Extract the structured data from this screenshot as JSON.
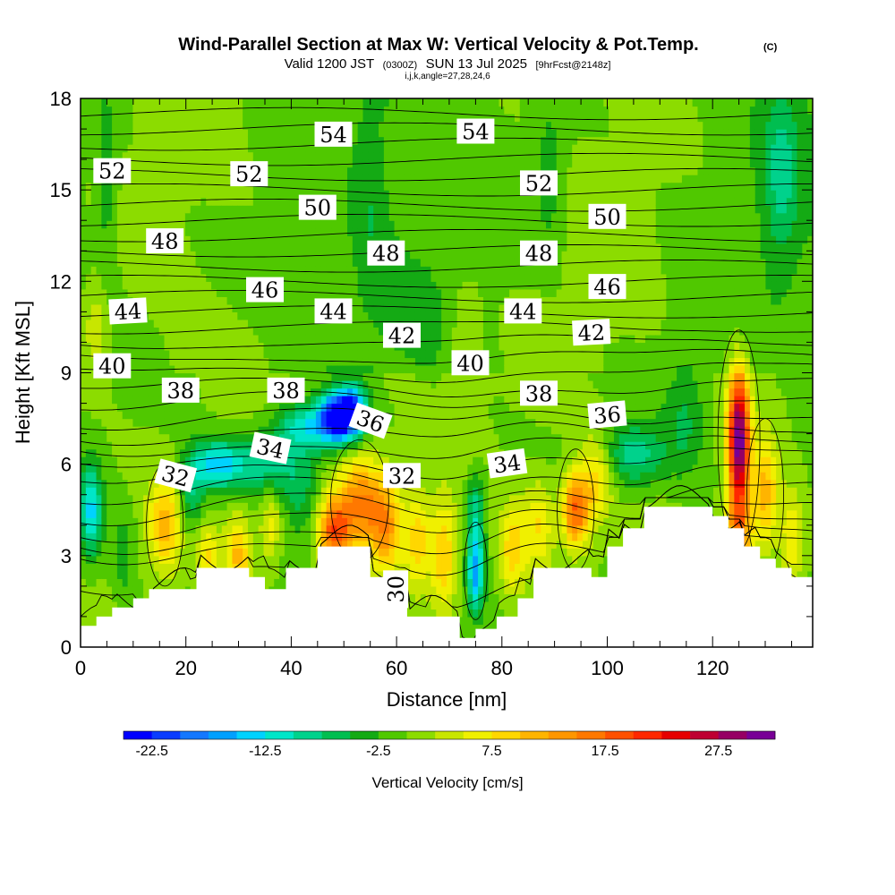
{
  "chart_data": {
    "type": "heatmap",
    "title": "Wind-Parallel Section at Max W: Vertical Velocity & Pot.Temp.",
    "title_mark": "(C)",
    "subtitle_parts": [
      "Valid 1200 JST",
      "(0300Z)",
      "SUN 13 Jul 2025",
      "[9hrFcst@2148z]"
    ],
    "indices_text": "i,j,k,angle=27,28,24,6",
    "xlabel": "Distance [nm]",
    "ylabel": "Height [Kft MSL]",
    "xlim": [
      0,
      139
    ],
    "ylim": [
      0,
      18
    ],
    "x_ticks": [
      0,
      20,
      40,
      60,
      80,
      100,
      120
    ],
    "y_ticks": [
      0,
      3,
      6,
      9,
      12,
      15,
      18
    ],
    "colorbar": {
      "title": "Vertical Velocity [cm/s]",
      "min": -25,
      "step": 2.5,
      "tick_labels": [
        "-22.5",
        "-12.5",
        "-2.5",
        "7.5",
        "17.5",
        "27.5"
      ],
      "tick_values": [
        -22.5,
        -12.5,
        -2.5,
        7.5,
        17.5,
        27.5
      ],
      "colors": [
        "#0000ff",
        "#0a3cff",
        "#1478ff",
        "#00a0ff",
        "#00d2ff",
        "#00e6c8",
        "#00d28c",
        "#00be50",
        "#14aa14",
        "#50c800",
        "#8cdc00",
        "#c8e600",
        "#f0f000",
        "#ffd700",
        "#ffb400",
        "#ff9600",
        "#ff7800",
        "#ff5000",
        "#ff2800",
        "#e60000",
        "#be0032",
        "#960064",
        "#780096"
      ]
    },
    "terrain_kft": [
      [
        0,
        0.7
      ],
      [
        3,
        0.7
      ],
      [
        3,
        1.0
      ],
      [
        6,
        1.0
      ],
      [
        6,
        1.3
      ],
      [
        10,
        1.3
      ],
      [
        10,
        1.6
      ],
      [
        13,
        1.6
      ],
      [
        13,
        1.9
      ],
      [
        22,
        1.9
      ],
      [
        22,
        2.6
      ],
      [
        32,
        2.6
      ],
      [
        32,
        2.3
      ],
      [
        35,
        2.3
      ],
      [
        35,
        1.9
      ],
      [
        39,
        1.9
      ],
      [
        39,
        2.6
      ],
      [
        45,
        2.6
      ],
      [
        45,
        3.3
      ],
      [
        55,
        3.3
      ],
      [
        55,
        2.3
      ],
      [
        62,
        2.3
      ],
      [
        62,
        1.0
      ],
      [
        72,
        1.0
      ],
      [
        72,
        0.3
      ],
      [
        75,
        0.3
      ],
      [
        75,
        0.6
      ],
      [
        79,
        0.6
      ],
      [
        79,
        1.0
      ],
      [
        83,
        1.0
      ],
      [
        83,
        1.6
      ],
      [
        86,
        1.6
      ],
      [
        86,
        2.6
      ],
      [
        97,
        2.6
      ],
      [
        97,
        2.3
      ],
      [
        100,
        2.3
      ],
      [
        100,
        3.3
      ],
      [
        103,
        3.3
      ],
      [
        103,
        3.9
      ],
      [
        107,
        3.9
      ],
      [
        107,
        4.6
      ],
      [
        120,
        4.6
      ],
      [
        120,
        4.3
      ],
      [
        123,
        4.3
      ],
      [
        123,
        3.9
      ],
      [
        126,
        3.9
      ],
      [
        126,
        3.3
      ],
      [
        129,
        3.3
      ],
      [
        129,
        2.9
      ],
      [
        132,
        2.9
      ],
      [
        132,
        2.6
      ],
      [
        135,
        2.6
      ],
      [
        135,
        2.3
      ],
      [
        139,
        2.3
      ]
    ],
    "theta_contours_base_kft": [
      1.0,
      2.0,
      3.0,
      3.5,
      4.0,
      4.5,
      5.0,
      5.5,
      6.0,
      6.5,
      7.0,
      7.5,
      8.0,
      8.5,
      9.0,
      9.5,
      10.0,
      10.5,
      11.0,
      11.5,
      12.0,
      12.5,
      13.0,
      13.5,
      14.0,
      14.5,
      15.0,
      15.5,
      16.0,
      16.5,
      17.0,
      17.5
    ],
    "velocity_cells": [
      {
        "x": 125,
        "z": 6.8,
        "sx": 2.0,
        "sz": 2.2,
        "w": 32
      },
      {
        "x": 125,
        "z": 3.5,
        "sx": 2.5,
        "sz": 1.5,
        "w": 14
      },
      {
        "x": 130,
        "z": 5.0,
        "sx": 2.5,
        "sz": 1.8,
        "w": 11
      },
      {
        "x": 135,
        "z": 3.5,
        "sx": 2.0,
        "sz": 1.5,
        "w": 8
      },
      {
        "x": 94,
        "z": 4.5,
        "sx": 2.5,
        "sz": 1.2,
        "w": 18
      },
      {
        "x": 98,
        "z": 5.5,
        "sx": 3.0,
        "sz": 1.5,
        "w": 9
      },
      {
        "x": 87,
        "z": 4.0,
        "sx": 3.0,
        "sz": 1.5,
        "w": 8
      },
      {
        "x": 53,
        "z": 4.8,
        "sx": 4.5,
        "sz": 1.5,
        "w": 15
      },
      {
        "x": 48,
        "z": 3.8,
        "sx": 3.0,
        "sz": 1.0,
        "w": 17
      },
      {
        "x": 58,
        "z": 4.0,
        "sx": 3.0,
        "sz": 1.5,
        "w": 12
      },
      {
        "x": 64,
        "z": 3.5,
        "sx": 2.5,
        "sz": 1.5,
        "w": 9
      },
      {
        "x": 69,
        "z": 3.0,
        "sx": 2.5,
        "sz": 1.8,
        "w": 10
      },
      {
        "x": 82,
        "z": 3.2,
        "sx": 2.5,
        "sz": 1.5,
        "w": 9
      },
      {
        "x": 16,
        "z": 4.0,
        "sx": 3.0,
        "sz": 1.5,
        "w": 11
      },
      {
        "x": 30,
        "z": 3.0,
        "sx": 2.5,
        "sz": 1.3,
        "w": 11
      },
      {
        "x": 36,
        "z": 4.0,
        "sx": 2.0,
        "sz": 1.2,
        "w": 7
      },
      {
        "x": 24,
        "z": 3.0,
        "sx": 2.0,
        "sz": 1.0,
        "w": 8
      },
      {
        "x": 3,
        "z": 10.5,
        "sx": 2.5,
        "sz": 1.5,
        "w": 5
      },
      {
        "x": 73,
        "z": 10.0,
        "sx": 3.0,
        "sz": 2.0,
        "w": 4
      },
      {
        "x": 49,
        "z": 7.6,
        "sx": 3.5,
        "sz": 0.8,
        "w": -25
      },
      {
        "x": 52,
        "z": 7.8,
        "sx": 2.5,
        "sz": 0.8,
        "w": -14
      },
      {
        "x": 43,
        "z": 7.2,
        "sx": 6.0,
        "sz": 0.8,
        "w": -11
      },
      {
        "x": 26,
        "z": 6.0,
        "sx": 5.0,
        "sz": 0.8,
        "w": -14
      },
      {
        "x": 36,
        "z": 6.0,
        "sx": 6.0,
        "sz": 1.0,
        "w": -9
      },
      {
        "x": 2,
        "z": 4.5,
        "sx": 2.0,
        "sz": 1.5,
        "w": -13
      },
      {
        "x": 75,
        "z": 2.5,
        "sx": 1.5,
        "sz": 1.2,
        "w": -16
      },
      {
        "x": 75,
        "z": 4.5,
        "sx": 1.8,
        "sz": 1.2,
        "w": -9
      },
      {
        "x": 105,
        "z": 6.3,
        "sx": 6.0,
        "sz": 1.0,
        "w": -9
      },
      {
        "x": 21,
        "z": 5.0,
        "sx": 2.5,
        "sz": 1.2,
        "w": -7
      },
      {
        "x": 8,
        "z": 3.0,
        "sx": 2.0,
        "sz": 1.5,
        "w": -4
      },
      {
        "x": 42,
        "z": 5.0,
        "sx": 3.0,
        "sz": 1.2,
        "w": -5
      },
      {
        "x": 115,
        "z": 7.5,
        "sx": 4.0,
        "sz": 2.0,
        "w": -5
      },
      {
        "x": 5,
        "z": 15.0,
        "sx": 2.0,
        "sz": 3.0,
        "w": -4
      },
      {
        "x": 55,
        "z": 14.5,
        "sx": 3.0,
        "sz": 3.0,
        "w": -3
      },
      {
        "x": 89,
        "z": 15.5,
        "sx": 3.0,
        "sz": 2.5,
        "w": -4
      },
      {
        "x": 133,
        "z": 15.5,
        "sx": 3.0,
        "sz": 3.0,
        "w": -6
      }
    ],
    "contour_labels": [
      {
        "text": "54",
        "x": 48,
        "z": 16.8,
        "rot": 0
      },
      {
        "text": "54",
        "x": 75,
        "z": 16.9,
        "rot": 0
      },
      {
        "text": "52",
        "x": 6,
        "z": 15.6,
        "rot": 0
      },
      {
        "text": "52",
        "x": 32,
        "z": 15.5,
        "rot": 0
      },
      {
        "text": "52",
        "x": 87,
        "z": 15.2,
        "rot": 0
      },
      {
        "text": "50",
        "x": 45,
        "z": 14.4,
        "rot": 0
      },
      {
        "text": "50",
        "x": 100,
        "z": 14.1,
        "rot": 0
      },
      {
        "text": "48",
        "x": 16,
        "z": 13.3,
        "rot": 0
      },
      {
        "text": "48",
        "x": 58,
        "z": 12.9,
        "rot": 0
      },
      {
        "text": "48",
        "x": 87,
        "z": 12.9,
        "rot": 0
      },
      {
        "text": "46",
        "x": 35,
        "z": 11.7,
        "rot": 0
      },
      {
        "text": "46",
        "x": 100,
        "z": 11.8,
        "rot": 0
      },
      {
        "text": "44",
        "x": 9,
        "z": 11.0,
        "rot": -3
      },
      {
        "text": "44",
        "x": 48,
        "z": 11.0,
        "rot": 0
      },
      {
        "text": "44",
        "x": 84,
        "z": 11.0,
        "rot": 0
      },
      {
        "text": "42",
        "x": 61,
        "z": 10.2,
        "rot": 0
      },
      {
        "text": "42",
        "x": 97,
        "z": 10.3,
        "rot": -3
      },
      {
        "text": "40",
        "x": 6,
        "z": 9.2,
        "rot": 0
      },
      {
        "text": "40",
        "x": 74,
        "z": 9.3,
        "rot": 0
      },
      {
        "text": "38",
        "x": 19,
        "z": 8.4,
        "rot": 0
      },
      {
        "text": "38",
        "x": 39,
        "z": 8.4,
        "rot": 0
      },
      {
        "text": "38",
        "x": 87,
        "z": 8.3,
        "rot": 0
      },
      {
        "text": "36",
        "x": 55,
        "z": 7.4,
        "rot": 20
      },
      {
        "text": "36",
        "x": 100,
        "z": 7.6,
        "rot": -5
      },
      {
        "text": "34",
        "x": 36,
        "z": 6.5,
        "rot": 12
      },
      {
        "text": "34",
        "x": 81,
        "z": 6.0,
        "rot": -8
      },
      {
        "text": "32",
        "x": 18,
        "z": 5.6,
        "rot": 15
      },
      {
        "text": "32",
        "x": 61,
        "z": 5.6,
        "rot": 0
      },
      {
        "text": "30",
        "x": 60,
        "z": 1.9,
        "rot": -90
      }
    ]
  }
}
